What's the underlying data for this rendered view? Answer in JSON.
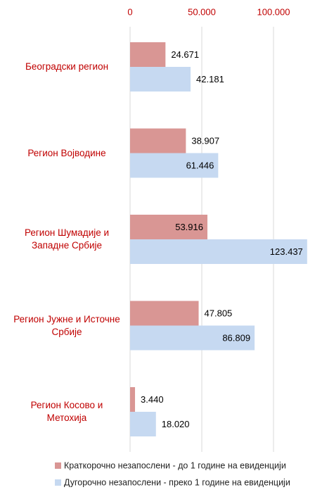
{
  "chart_data": {
    "type": "bar",
    "orientation": "horizontal",
    "categories": [
      "Београдски регион",
      "Регион Војводине",
      "Регион Шумадије и\nЗападне Србије",
      "Регион Јужне и Источне\nСрбије",
      "Регион Косово и\nМетохија"
    ],
    "series": [
      {
        "name": "Краткорочно незапослени - до 1 године на евиденцији",
        "color": "#d99694",
        "values": [
          24671,
          38907,
          53916,
          47805,
          3440
        ],
        "value_labels": [
          "24.671",
          "38.907",
          "53.916",
          "47.805",
          "3.440"
        ]
      },
      {
        "name": "Дугорочно незапослени - преко 1 године на евиденцији",
        "color": "#c6d9f1",
        "values": [
          42181,
          61446,
          123437,
          86809,
          18020
        ],
        "value_labels": [
          "42.181",
          "61.446",
          "123.437",
          "86.809",
          "18.020"
        ]
      }
    ],
    "xlim": [
      0,
      125000
    ],
    "xticks": [
      0,
      {
        "value": 50000,
        "label": "50.000"
      },
      {
        "value": 100000,
        "label": "100.000"
      }
    ],
    "grid": true,
    "legend": "bottom",
    "category_color": "#c00000",
    "tick_color": "#c00000"
  }
}
